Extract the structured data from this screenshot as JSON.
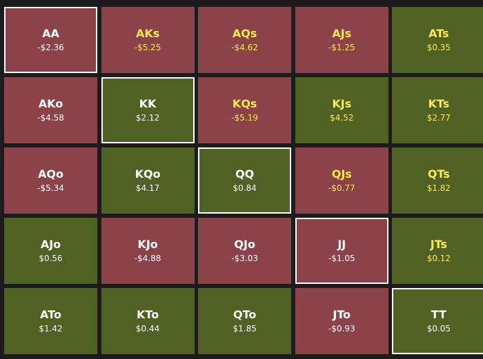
{
  "grid": {
    "rows": [
      [
        {
          "label": "AA",
          "value": "-$2.36",
          "fill": "#8b4349",
          "text": "#ffffff"
        },
        {
          "label": "AKs",
          "value": "-$5.25",
          "fill": "#8b4349",
          "text": "#ffe94d"
        },
        {
          "label": "AQs",
          "value": "-$4.62",
          "fill": "#8b4349",
          "text": "#ffe94d"
        },
        {
          "label": "AJs",
          "value": "-$1.25",
          "fill": "#8b4349",
          "text": "#ffe94d"
        },
        {
          "label": "ATs",
          "value": "$0.35",
          "fill": "#4f6224",
          "text": "#ffe94d"
        }
      ],
      [
        {
          "label": "AKo",
          "value": "-$4.58",
          "fill": "#8b4349",
          "text": "#ffffff"
        },
        {
          "label": "KK",
          "value": "$2.12",
          "fill": "#4f6224",
          "text": "#ffffff"
        },
        {
          "label": "KQs",
          "value": "-$5.19",
          "fill": "#8b4349",
          "text": "#ffe94d"
        },
        {
          "label": "KJs",
          "value": "$4.52",
          "fill": "#4f6224",
          "text": "#ffe94d"
        },
        {
          "label": "KTs",
          "value": "$2.77",
          "fill": "#4f6224",
          "text": "#ffe94d"
        }
      ],
      [
        {
          "label": "AQo",
          "value": "-$5.34",
          "fill": "#8b4349",
          "text": "#ffffff"
        },
        {
          "label": "KQo",
          "value": "$4.17",
          "fill": "#4f6224",
          "text": "#ffffff"
        },
        {
          "label": "QQ",
          "value": "$0.84",
          "fill": "#4f6224",
          "text": "#ffffff"
        },
        {
          "label": "QJs",
          "value": "-$0.77",
          "fill": "#8b4349",
          "text": "#ffe94d"
        },
        {
          "label": "QTs",
          "value": "$1.82",
          "fill": "#4f6224",
          "text": "#ffe94d"
        }
      ],
      [
        {
          "label": "AJo",
          "value": "$0.56",
          "fill": "#4f6224",
          "text": "#ffffff"
        },
        {
          "label": "KJo",
          "value": "-$4.88",
          "fill": "#8b4349",
          "text": "#ffffff"
        },
        {
          "label": "QJo",
          "value": "-$3.03",
          "fill": "#8b4349",
          "text": "#ffffff"
        },
        {
          "label": "JJ",
          "value": "-$1.05",
          "fill": "#8b4349",
          "text": "#ffffff"
        },
        {
          "label": "JTs",
          "value": "$0.12",
          "fill": "#4f6224",
          "text": "#ffe94d"
        }
      ],
      [
        {
          "label": "ATo",
          "value": "$1.42",
          "fill": "#4f6224",
          "text": "#ffffff"
        },
        {
          "label": "KTo",
          "value": "$0.44",
          "fill": "#4f6224",
          "text": "#ffffff"
        },
        {
          "label": "QTo",
          "value": "$1.85",
          "fill": "#4f6224",
          "text": "#ffffff"
        },
        {
          "label": "JTo",
          "value": "-$0.93",
          "fill": "#8b4349",
          "text": "#ffffff"
        },
        {
          "label": "TT",
          "value": "$0.05",
          "fill": "#4f6224",
          "text": "#ffffff"
        }
      ]
    ]
  }
}
